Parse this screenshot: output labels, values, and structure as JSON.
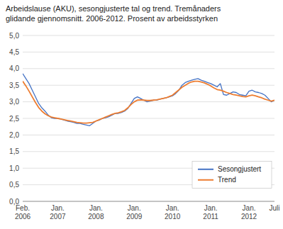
{
  "chart_data": {
    "type": "line",
    "title": "Arbeidslause (AKU), sesongjusterte tal og trend. Tremånaders\nglidande gjennomsnitt. 2006-2012. Prosent av arbeidsstyrken",
    "categories": [
      "Feb.\n2006",
      null,
      null,
      null,
      null,
      null,
      null,
      null,
      null,
      null,
      null,
      "Jan.\n2007",
      null,
      null,
      null,
      null,
      null,
      null,
      null,
      null,
      null,
      null,
      null,
      "Jan.\n2008",
      null,
      null,
      null,
      null,
      null,
      null,
      null,
      null,
      null,
      null,
      null,
      "Jan.\n2009",
      null,
      null,
      null,
      null,
      null,
      null,
      null,
      null,
      null,
      null,
      null,
      "Jan.\n2010",
      null,
      null,
      null,
      null,
      null,
      null,
      null,
      null,
      null,
      null,
      null,
      "Jan.\n2011",
      null,
      null,
      null,
      null,
      null,
      null,
      null,
      null,
      null,
      null,
      null,
      "Jan.\n2012",
      null,
      null,
      null,
      null,
      null,
      null,
      null,
      "Juli"
    ],
    "series": [
      {
        "name": "Sesongjustert",
        "color": "#4472c4",
        "values": [
          3.85,
          3.7,
          3.55,
          3.35,
          3.15,
          2.95,
          2.82,
          2.72,
          2.6,
          2.52,
          2.5,
          2.5,
          2.48,
          2.45,
          2.42,
          2.4,
          2.38,
          2.35,
          2.35,
          2.32,
          2.3,
          2.28,
          2.35,
          2.42,
          2.45,
          2.5,
          2.52,
          2.55,
          2.6,
          2.65,
          2.65,
          2.68,
          2.72,
          2.8,
          2.95,
          3.1,
          3.15,
          3.1,
          3.05,
          3.0,
          3.02,
          3.05,
          3.05,
          3.08,
          3.1,
          3.12,
          3.15,
          3.18,
          3.25,
          3.35,
          3.5,
          3.58,
          3.62,
          3.65,
          3.68,
          3.7,
          3.65,
          3.62,
          3.58,
          3.55,
          3.5,
          3.45,
          3.55,
          3.22,
          3.2,
          3.25,
          3.3,
          3.28,
          3.22,
          3.2,
          3.18,
          3.32,
          3.35,
          3.3,
          3.28,
          3.25,
          3.2,
          3.1,
          3.0,
          3.05
        ]
      },
      {
        "name": "Trend",
        "color": "#ed7d31",
        "values": [
          3.62,
          3.48,
          3.32,
          3.15,
          2.98,
          2.83,
          2.72,
          2.64,
          2.58,
          2.54,
          2.52,
          2.5,
          2.48,
          2.46,
          2.44,
          2.42,
          2.4,
          2.38,
          2.37,
          2.36,
          2.36,
          2.37,
          2.38,
          2.42,
          2.46,
          2.5,
          2.54,
          2.58,
          2.62,
          2.65,
          2.67,
          2.7,
          2.74,
          2.82,
          2.92,
          3.0,
          3.05,
          3.06,
          3.05,
          3.04,
          3.04,
          3.05,
          3.06,
          3.08,
          3.1,
          3.12,
          3.16,
          3.2,
          3.28,
          3.36,
          3.44,
          3.5,
          3.56,
          3.6,
          3.62,
          3.62,
          3.6,
          3.57,
          3.53,
          3.48,
          3.42,
          3.37,
          3.35,
          3.32,
          3.28,
          3.25,
          3.22,
          3.2,
          3.18,
          3.16,
          3.15,
          3.18,
          3.2,
          3.18,
          3.15,
          3.12,
          3.08,
          3.05,
          3.02,
          3.05
        ]
      }
    ],
    "ylim": [
      0.0,
      5.0
    ],
    "yticks": [
      {
        "value": 0.0,
        "label": "0,0"
      },
      {
        "value": 0.5,
        "label": "0,5"
      },
      {
        "value": 1.0,
        "label": "1,0"
      },
      {
        "value": 1.5,
        "label": "1,5"
      },
      {
        "value": 2.0,
        "label": "2,0"
      },
      {
        "value": 2.5,
        "label": "2,5"
      },
      {
        "value": 3.0,
        "label": "3,0"
      },
      {
        "value": 3.5,
        "label": "3,5"
      },
      {
        "value": 4.0,
        "label": "4,0"
      },
      {
        "value": 4.5,
        "label": "4,5"
      },
      {
        "value": 5.0,
        "label": "5,0"
      }
    ],
    "grid": true,
    "legend": "lower right"
  }
}
